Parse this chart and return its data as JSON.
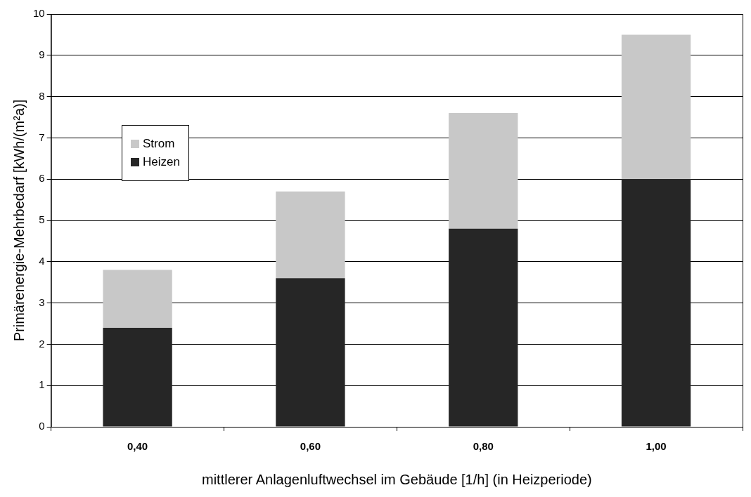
{
  "chart_data": {
    "type": "bar",
    "xlabel": "mittlerer Anlagenluftwechsel im Gebäude [1/h] (in Heizperiode)",
    "ylabel": "Primärenergie-Mehrbedarf [kWh/(m²a)]",
    "categories": [
      "0,40",
      "0,60",
      "0,80",
      "1,00"
    ],
    "stacked": true,
    "series": [
      {
        "name": "Heizen",
        "color": "#262626",
        "values": [
          2.4,
          3.6,
          4.8,
          6.0
        ]
      },
      {
        "name": "Strom",
        "color": "#c8c8c8",
        "values": [
          1.4,
          2.1,
          2.8,
          3.5
        ]
      }
    ],
    "ylim": [
      0,
      10
    ],
    "yticks": [
      0,
      1,
      2,
      3,
      4,
      5,
      6,
      7,
      8,
      9,
      10
    ],
    "grid": "y",
    "legend": "top left"
  }
}
